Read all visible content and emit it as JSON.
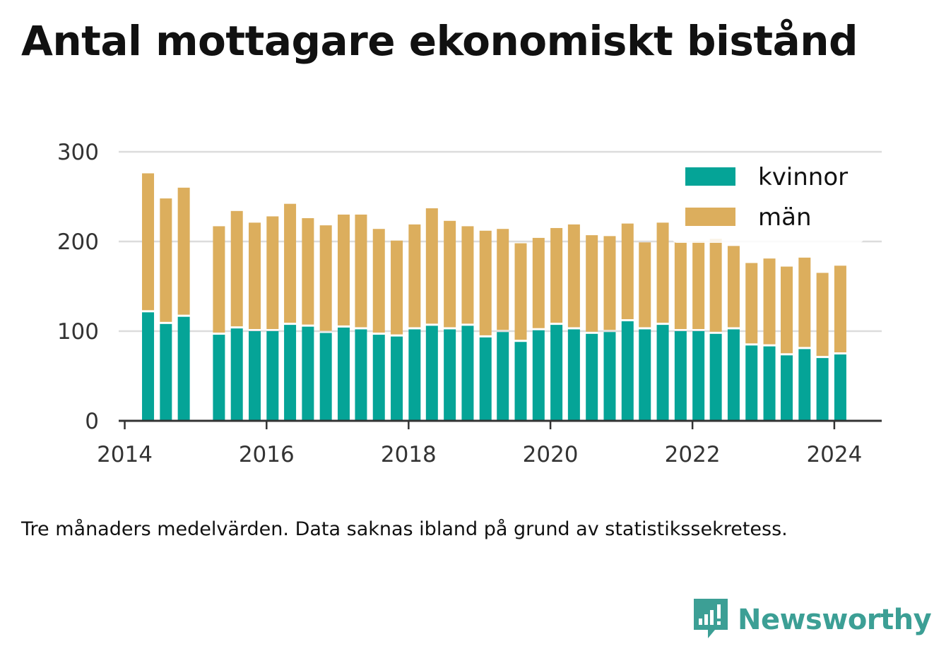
{
  "title": "Antal mottagare ekonomiskt bistånd",
  "caption": "Tre månaders medelvärden. Data saknas ibland på grund av statistikssekretess.",
  "brand": {
    "name": "Newsworthy",
    "icon": "newsworthy-logo-icon",
    "color": "#3c9f95"
  },
  "chart_data": {
    "type": "bar",
    "stacked": true,
    "x": [
      "2014-05",
      "2014-08",
      "2014-11",
      "2015-05",
      "2015-08",
      "2015-11",
      "2016-02",
      "2016-05",
      "2016-08",
      "2016-11",
      "2017-02",
      "2017-05",
      "2017-08",
      "2017-11",
      "2018-02",
      "2018-05",
      "2018-08",
      "2018-11",
      "2019-02",
      "2019-05",
      "2019-08",
      "2019-11",
      "2020-02",
      "2020-05",
      "2020-08",
      "2020-11",
      "2021-02",
      "2021-05",
      "2021-08",
      "2021-11",
      "2022-02",
      "2022-05",
      "2022-08",
      "2022-11",
      "2023-02",
      "2023-05",
      "2023-08",
      "2023-11",
      "2024-02"
    ],
    "series": [
      {
        "name": "kvinnor",
        "color": "#05a497",
        "values": [
          121,
          108,
          116,
          96,
          103,
          100,
          100,
          107,
          105,
          98,
          104,
          102,
          96,
          94,
          102,
          106,
          102,
          106,
          93,
          99,
          88,
          101,
          107,
          102,
          97,
          99,
          111,
          102,
          107,
          100,
          100,
          97,
          102,
          84,
          83,
          73,
          80,
          70,
          74
        ]
      },
      {
        "name": "män",
        "color": "#dcae5d",
        "values": [
          155,
          140,
          144,
          121,
          131,
          121,
          128,
          135,
          121,
          120,
          126,
          128,
          118,
          107,
          117,
          131,
          121,
          111,
          119,
          115,
          110,
          103,
          108,
          117,
          110,
          107,
          109,
          97,
          114,
          99,
          100,
          106,
          93,
          92,
          98,
          99,
          102,
          95,
          99
        ]
      }
    ],
    "x_ticks": [
      "2014",
      "2016",
      "2018",
      "2020",
      "2022",
      "2024"
    ],
    "y_ticks": [
      "0",
      "100",
      "200",
      "300"
    ],
    "xlim": [
      "2013-12-01",
      "2024-09-01"
    ],
    "ylim": [
      0,
      300
    ],
    "grid": "horizontal",
    "legend": "top-right"
  }
}
